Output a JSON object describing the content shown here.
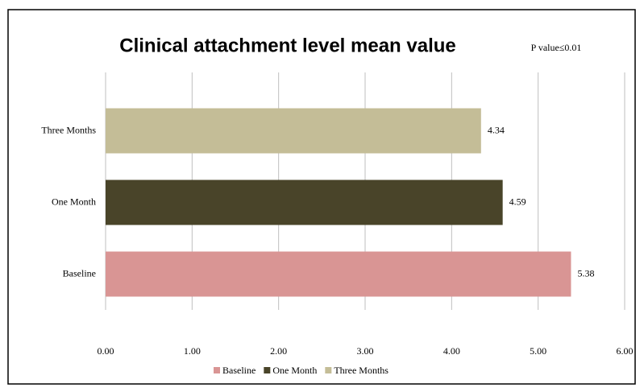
{
  "chart_data": {
    "type": "bar",
    "orientation": "horizontal",
    "title": "Clinical attachment level mean value",
    "annotation": "P value≤0.01",
    "categories": [
      "Baseline",
      "One Month",
      "Three Months"
    ],
    "values": [
      5.38,
      4.59,
      4.34
    ],
    "colors": [
      "#d99594",
      "#494429",
      "#c4bd97"
    ],
    "xlim": [
      0,
      6
    ],
    "xticks": [
      {
        "value": 0,
        "label": "0.00"
      },
      {
        "value": 1,
        "label": "1.00"
      },
      {
        "value": 2,
        "label": "2.00"
      },
      {
        "value": 3,
        "label": "3.00"
      },
      {
        "value": 4,
        "label": "4.00"
      },
      {
        "value": 5,
        "label": "5.00"
      },
      {
        "value": 6,
        "label": "6.00"
      }
    ],
    "grid": true,
    "legend": "bottom"
  }
}
